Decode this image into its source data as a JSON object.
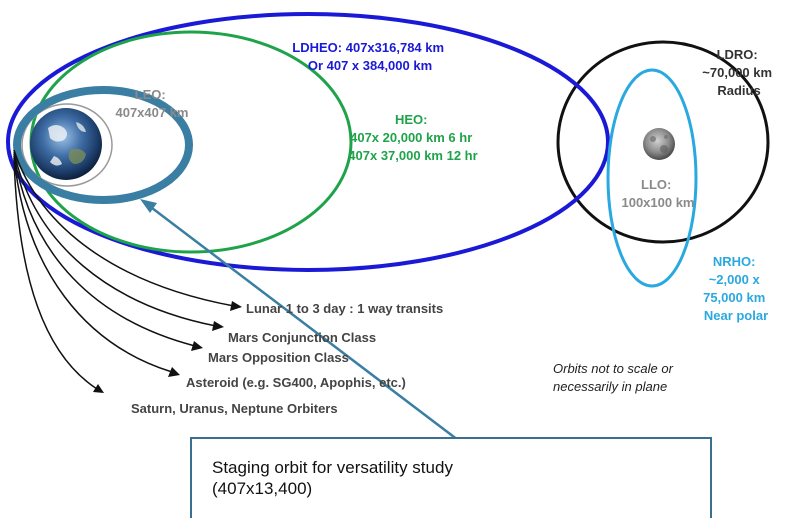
{
  "labels": {
    "ldheo_line1": "LDHEO: 407x316,784 km",
    "ldheo_line2": "Or 407 x 384,000 km",
    "leo_line1": "LEO:",
    "leo_line2": "407x407 km",
    "heo_line1": "HEO:",
    "heo_line2": "407x 20,000 km 6 hr",
    "heo_line3": "407x 37,000 km 12 hr",
    "ldro_line1": "LDRO:",
    "ldro_line2": "~70,000 km",
    "ldro_line3": "Radius",
    "llo_line1": "LLO:",
    "llo_line2": "100x100 km",
    "nrho_line1": "NRHO:",
    "nrho_line2": "~2,000 x",
    "nrho_line3": "75,000 km",
    "nrho_line4": "Near polar"
  },
  "trajectories": [
    "Lunar 1 to 3 day : 1 way transits",
    "Mars Conjunction Class",
    "Mars Opposition Class",
    "Asteroid (e.g. SG400, Apophis, etc.)",
    "Saturn, Uranus, Neptune Orbiters"
  ],
  "note_line1": "Orbits not to scale or",
  "note_line2": "necessarily in plane",
  "callout_line1": "Staging orbit for versatility study",
  "callout_line2": "(407x13,400)",
  "colors": {
    "ldheo": "#1a1ad6",
    "heo": "#1fa34a",
    "ldro": "#111111",
    "nrho": "#2aa8e0",
    "staging": "#3a7fa3",
    "leo_text": "#8a8a8a"
  },
  "icons": [
    "earth-icon",
    "moon-icon"
  ]
}
